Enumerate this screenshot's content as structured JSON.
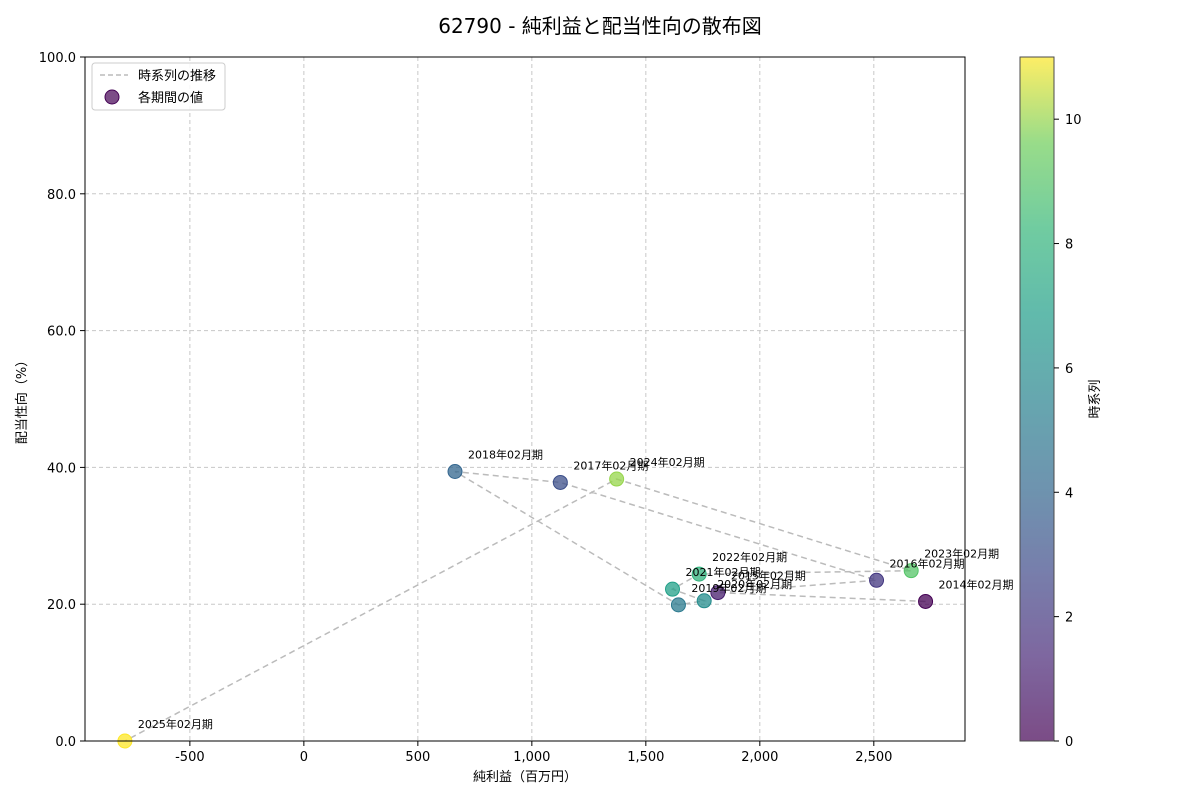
{
  "chart_data": {
    "type": "scatter",
    "title": "62790 - 純利益と配当性向の散布図",
    "xlabel": "純利益（百万円）",
    "ylabel": "配当性向（%）",
    "xlim": [
      -960,
      2900
    ],
    "ylim": [
      0,
      100
    ],
    "x_ticks": [
      -500,
      0,
      500,
      1000,
      1500,
      2000,
      2500
    ],
    "x_tick_labels": [
      "-500",
      "0",
      "500",
      "1,000",
      "1,500",
      "2,000",
      "2,500"
    ],
    "y_ticks": [
      0,
      20,
      40,
      60,
      80,
      100
    ],
    "y_tick_labels": [
      "0.0",
      "20.0",
      "40.0",
      "60.0",
      "80.0",
      "100.0"
    ],
    "grid": true,
    "legend": {
      "placement": "top-left",
      "entries": [
        {
          "label": "時系列の推移",
          "kind": "dashed-line"
        },
        {
          "label": "各期間の値",
          "kind": "marker"
        }
      ]
    },
    "colorbar": {
      "label": "時系列",
      "range": [
        0,
        11
      ],
      "ticks": [
        0,
        2,
        4,
        6,
        8,
        10
      ],
      "tick_labels": [
        "0",
        "2",
        "4",
        "6",
        "8",
        "10"
      ],
      "colormap": "viridis"
    },
    "points": [
      {
        "period": "2014年02月期",
        "x": 2727,
        "y": 20.4,
        "t": 0
      },
      {
        "period": "2015年02月期",
        "x": 1816,
        "y": 21.7,
        "t": 1
      },
      {
        "period": "2016年02月期",
        "x": 2512,
        "y": 23.5,
        "t": 2
      },
      {
        "period": "2017年02月期",
        "x": 1125,
        "y": 37.8,
        "t": 3
      },
      {
        "period": "2018年02月期",
        "x": 663,
        "y": 39.4,
        "t": 4
      },
      {
        "period": "2019年02月期",
        "x": 1643,
        "y": 19.9,
        "t": 5
      },
      {
        "period": "2020年02月期",
        "x": 1756,
        "y": 20.5,
        "t": 6
      },
      {
        "period": "2021年02月期",
        "x": 1617,
        "y": 22.2,
        "t": 7
      },
      {
        "period": "2022年02月期",
        "x": 1734,
        "y": 24.4,
        "t": 8
      },
      {
        "period": "2023年02月期",
        "x": 2664,
        "y": 24.9,
        "t": 9
      },
      {
        "period": "2024年02月期",
        "x": 1372,
        "y": 38.3,
        "t": 10
      },
      {
        "period": "2025年02月期",
        "x": -785,
        "y": 0.0,
        "t": 11
      }
    ]
  }
}
